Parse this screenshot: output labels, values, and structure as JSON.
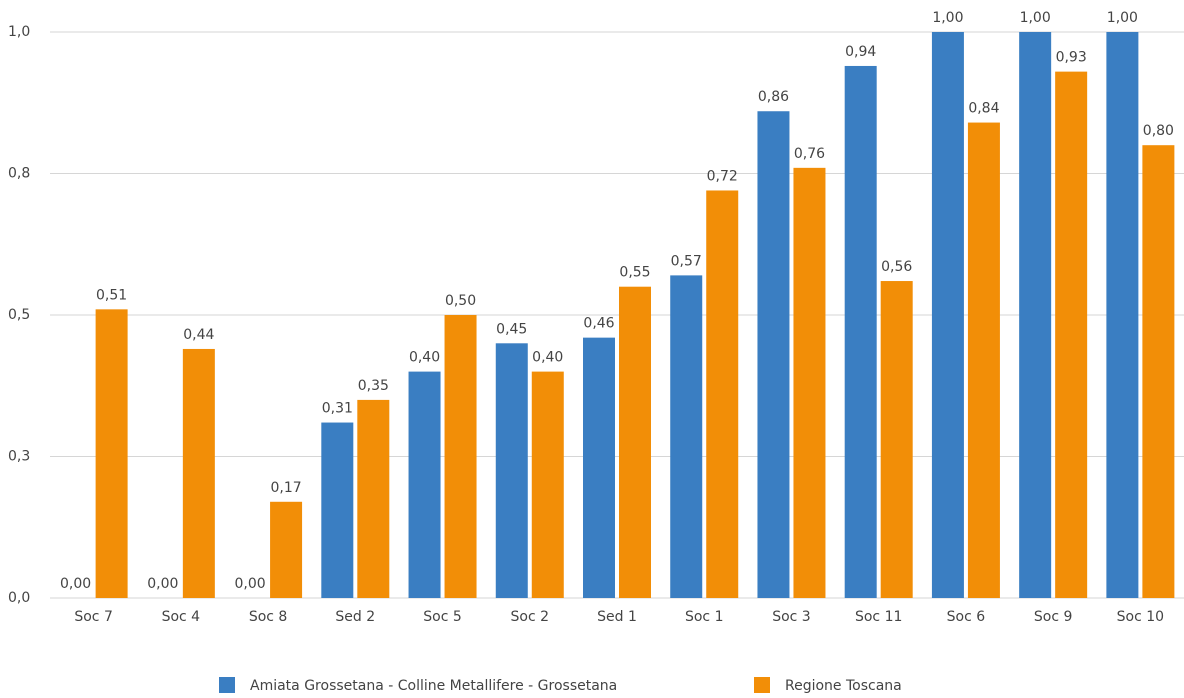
{
  "chart_data": {
    "type": "bar",
    "categories": [
      "Soc 7",
      "Soc 4",
      "Soc 8",
      "Sed 2",
      "Soc 5",
      "Soc 2",
      "Sed 1",
      "Soc 1",
      "Soc 3",
      "Soc 11",
      "Soc 6",
      "Soc 9",
      "Soc 10"
    ],
    "series": [
      {
        "name": "Amiata Grossetana - Colline Metallifere - Grossetana",
        "color": "#3a7ec2",
        "values": [
          0,
          0,
          0,
          0.31,
          0.4,
          0.45,
          0.46,
          0.57,
          0.86,
          0.94,
          1,
          1,
          1
        ],
        "value_labels": [
          "0,00",
          "0,00",
          "0,00",
          "0,31",
          "0,40",
          "0,45",
          "0,46",
          "0,57",
          "0,86",
          "0,94",
          "1,00",
          "1,00",
          "1,00"
        ]
      },
      {
        "name": "Regione Toscana",
        "color": "#f28e07",
        "values": [
          0.51,
          0.44,
          0.17,
          0.35,
          0.5,
          0.4,
          0.55,
          0.72,
          0.76,
          0.56,
          0.84,
          0.93,
          0.8
        ],
        "value_labels": [
          "0,51",
          "0,44",
          "0,17",
          "0,35",
          "0,50",
          "0,40",
          "0,55",
          "0,72",
          "0,76",
          "0,56",
          "0,84",
          "0,93",
          "0,80"
        ]
      }
    ],
    "ylim": [
      0,
      1
    ],
    "yticks": [
      {
        "value": 0,
        "label": "0,0"
      },
      {
        "value": 0.25,
        "label": "0,3"
      },
      {
        "value": 0.5,
        "label": "0,5"
      },
      {
        "value": 0.75,
        "label": "0,8"
      },
      {
        "value": 1,
        "label": "1,0"
      }
    ],
    "grid": true,
    "legend": "bottom"
  }
}
